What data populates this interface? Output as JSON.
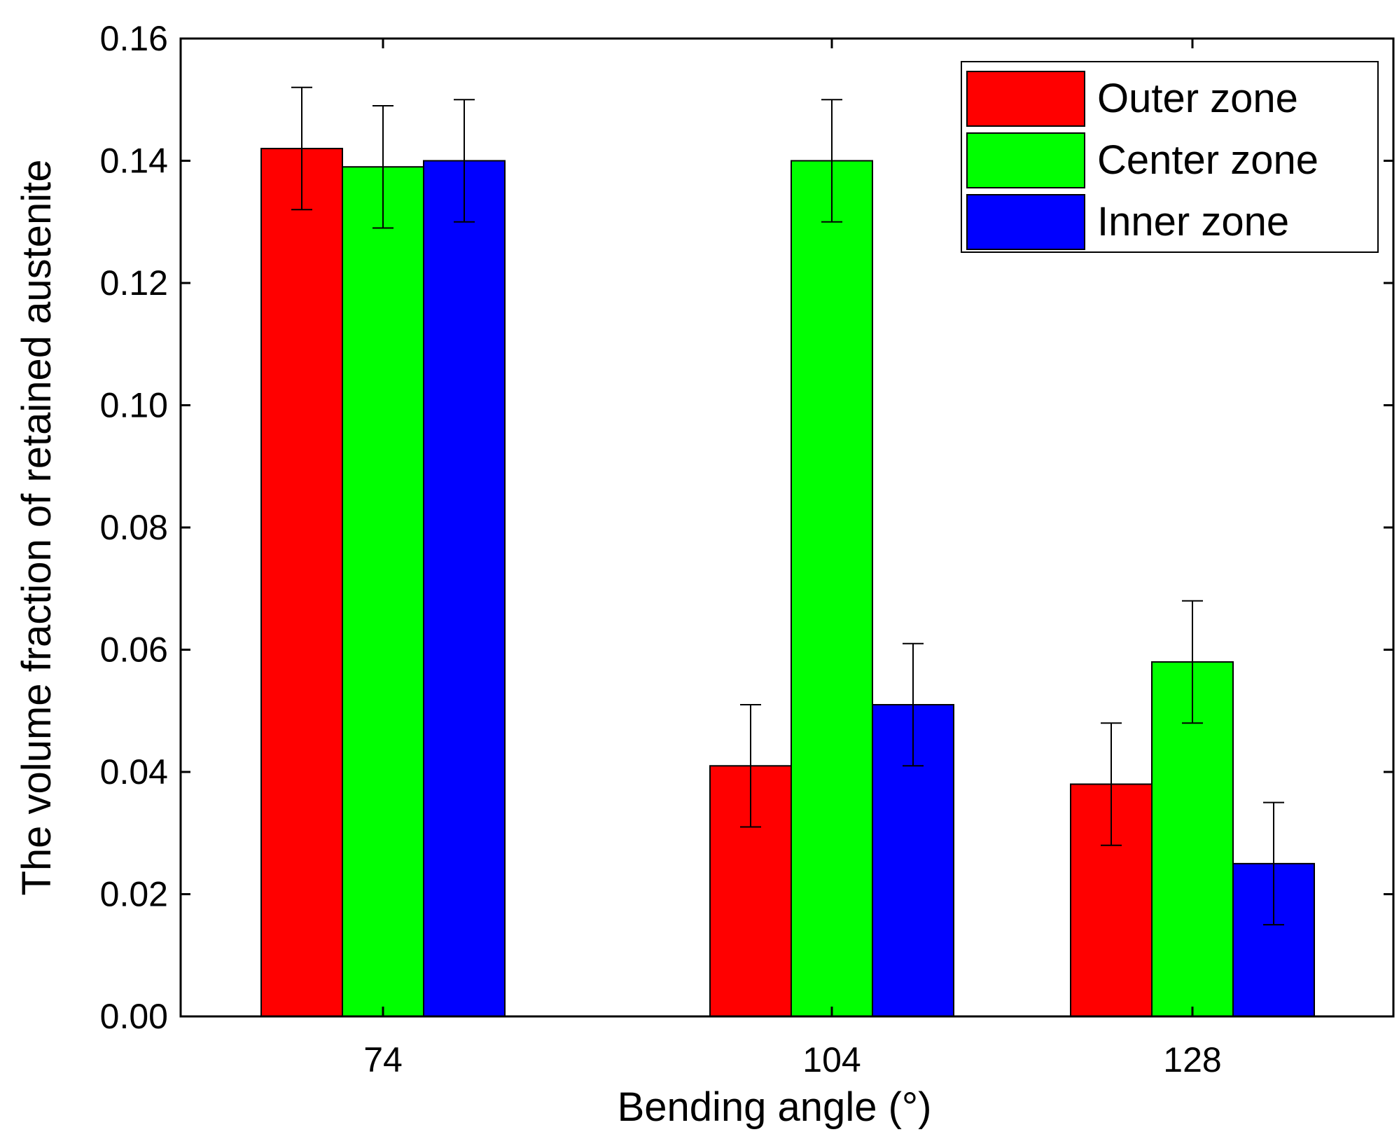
{
  "chart_data": {
    "type": "bar",
    "title": "",
    "xlabel": "Bending angle (°)",
    "ylabel": "The volume fraction of retained austenite",
    "categories": [
      "74",
      "104",
      "128"
    ],
    "series": [
      {
        "name": "Outer zone",
        "color": "#ff0000",
        "values": [
          0.142,
          0.041,
          0.038
        ],
        "errors": [
          0.01,
          0.01,
          0.01
        ]
      },
      {
        "name": "Center zone",
        "color": "#00ff00",
        "values": [
          0.139,
          0.14,
          0.058
        ],
        "errors": [
          0.01,
          0.01,
          0.01
        ]
      },
      {
        "name": "Inner zone",
        "color": "#0000ff",
        "values": [
          0.14,
          0.051,
          0.025
        ],
        "errors": [
          0.01,
          0.01,
          0.01
        ]
      }
    ],
    "ylim": [
      0,
      0.16
    ],
    "yticks": [
      "0.00",
      "0.02",
      "0.04",
      "0.06",
      "0.08",
      "0.10",
      "0.12",
      "0.14",
      "0.16"
    ],
    "grid": false,
    "legend_position": "top-right"
  }
}
